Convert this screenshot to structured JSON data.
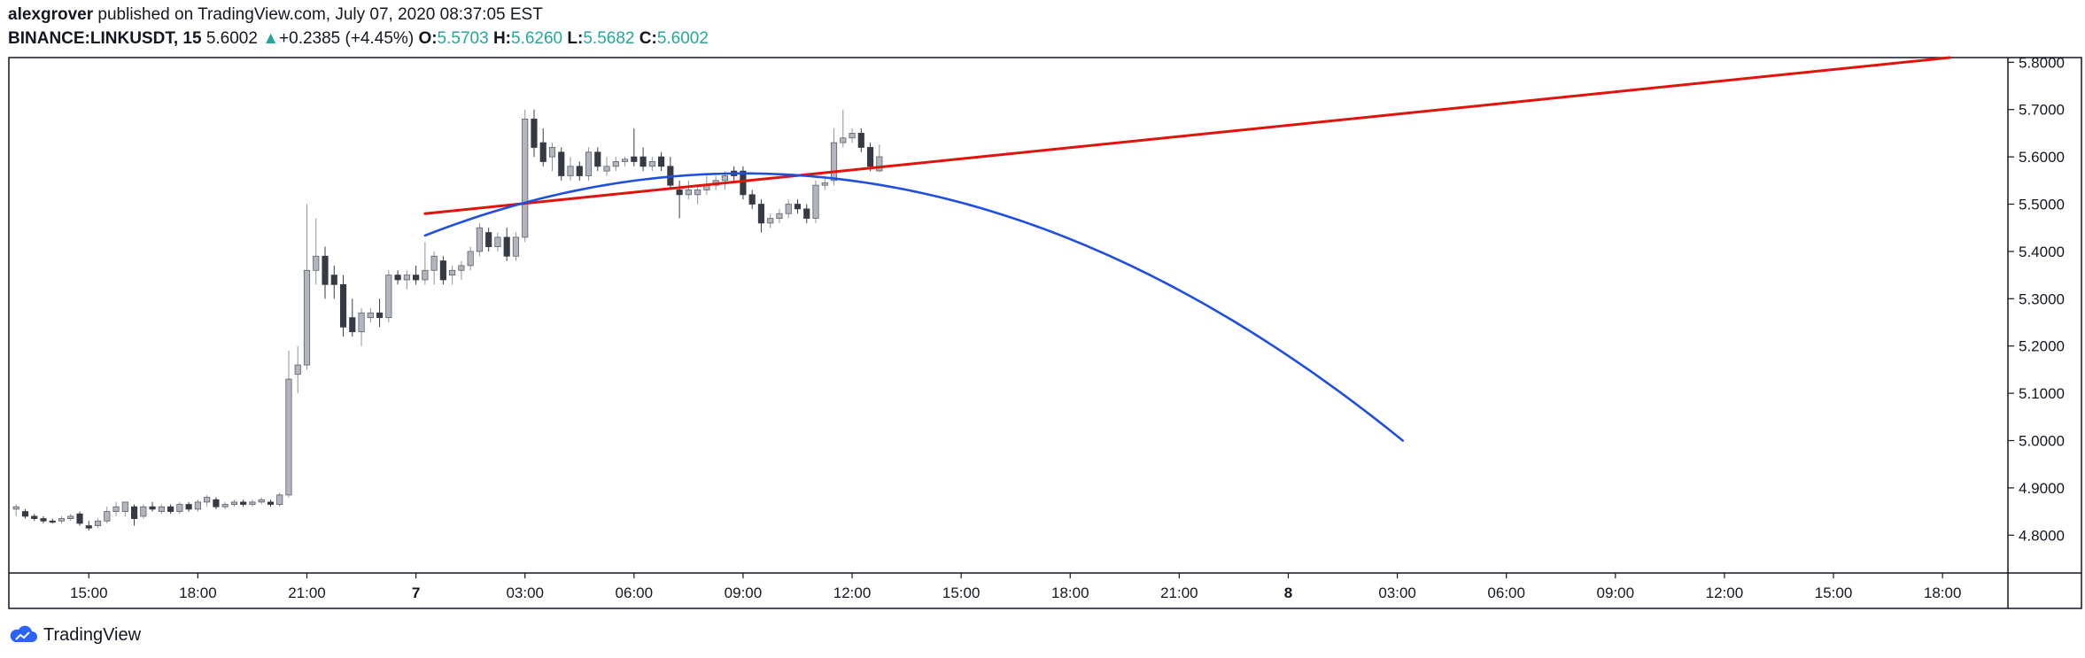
{
  "header": {
    "author": "alexgrover",
    "published_text": "published on TradingView.com, July 07, 2020 08:37:05 EST",
    "symbol": "BINANCE:LINKUSDT, 15",
    "price": "5.6002",
    "arrow": "▲",
    "change": "+0.2385 (+4.45%)",
    "o_label": "O:",
    "o_value": "5.5703",
    "h_label": "H:",
    "h_value": "5.6260",
    "l_label": "L:",
    "l_value": "5.5682",
    "c_label": "C:",
    "c_value": "5.6002"
  },
  "footer": {
    "brand": "TradingView",
    "logo_icon": "tradingview-cloud-icon"
  },
  "colors": {
    "up": "#26a69a",
    "bull_candle": "#b2b5be",
    "bear_candle": "#363a45",
    "red_line": "#e0140c",
    "blue_curve": "#1f4fe0",
    "axis": "#131722"
  },
  "chart_data": {
    "type": "candlestick",
    "symbol": "BINANCE:LINKUSDT",
    "interval": "15",
    "y_axis": {
      "side": "right",
      "ticks": [
        "5.8000",
        "5.7000",
        "5.6000",
        "5.5000",
        "5.4000",
        "5.3000",
        "5.2000",
        "5.1000",
        "5.0000",
        "4.9000",
        "4.8000"
      ],
      "range": [
        4.72,
        5.81
      ]
    },
    "x_axis": {
      "ticks": [
        {
          "label": "15:00",
          "t": 15,
          "bold": false
        },
        {
          "label": "18:00",
          "t": 18,
          "bold": false
        },
        {
          "label": "21:00",
          "t": 21,
          "bold": false
        },
        {
          "label": "7",
          "t": 24,
          "bold": true
        },
        {
          "label": "03:00",
          "t": 27,
          "bold": false
        },
        {
          "label": "06:00",
          "t": 30,
          "bold": false
        },
        {
          "label": "09:00",
          "t": 33,
          "bold": false
        },
        {
          "label": "12:00",
          "t": 36,
          "bold": false
        },
        {
          "label": "15:00",
          "t": 39,
          "bold": false
        },
        {
          "label": "18:00",
          "t": 42,
          "bold": false
        },
        {
          "label": "21:00",
          "t": 45,
          "bold": false
        },
        {
          "label": "8",
          "t": 48,
          "bold": true
        },
        {
          "label": "03:00",
          "t": 51,
          "bold": false
        },
        {
          "label": "06:00",
          "t": 54,
          "bold": false
        },
        {
          "label": "09:00",
          "t": 57,
          "bold": false
        },
        {
          "label": "12:00",
          "t": 60,
          "bold": false
        },
        {
          "label": "15:00",
          "t": 63,
          "bold": false
        },
        {
          "label": "18:00",
          "t": 66,
          "bold": false
        }
      ],
      "range": [
        12.8,
        67.8
      ]
    },
    "candles": [
      {
        "t": 12.75,
        "o": 4.86,
        "h": 4.865,
        "l": 4.85,
        "c": 4.855
      },
      {
        "t": 13.0,
        "o": 4.855,
        "h": 4.865,
        "l": 4.84,
        "c": 4.86
      },
      {
        "t": 13.25,
        "o": 4.85,
        "h": 4.855,
        "l": 4.835,
        "c": 4.84
      },
      {
        "t": 13.5,
        "o": 4.84,
        "h": 4.845,
        "l": 4.83,
        "c": 4.835
      },
      {
        "t": 13.75,
        "o": 4.835,
        "h": 4.84,
        "l": 4.825,
        "c": 4.83
      },
      {
        "t": 14.0,
        "o": 4.83,
        "h": 4.835,
        "l": 4.825,
        "c": 4.828
      },
      {
        "t": 14.25,
        "o": 4.83,
        "h": 4.84,
        "l": 4.825,
        "c": 4.835
      },
      {
        "t": 14.5,
        "o": 4.835,
        "h": 4.845,
        "l": 4.83,
        "c": 4.84
      },
      {
        "t": 14.75,
        "o": 4.845,
        "h": 4.85,
        "l": 4.82,
        "c": 4.825
      },
      {
        "t": 15.0,
        "o": 4.82,
        "h": 4.83,
        "l": 4.81,
        "c": 4.815
      },
      {
        "t": 15.25,
        "o": 4.82,
        "h": 4.835,
        "l": 4.815,
        "c": 4.83
      },
      {
        "t": 15.5,
        "o": 4.83,
        "h": 4.86,
        "l": 4.825,
        "c": 4.85
      },
      {
        "t": 15.75,
        "o": 4.85,
        "h": 4.87,
        "l": 4.84,
        "c": 4.86
      },
      {
        "t": 16.0,
        "o": 4.85,
        "h": 4.87,
        "l": 4.84,
        "c": 4.87
      },
      {
        "t": 16.25,
        "o": 4.86,
        "h": 4.865,
        "l": 4.82,
        "c": 4.835
      },
      {
        "t": 16.5,
        "o": 4.84,
        "h": 4.865,
        "l": 4.835,
        "c": 4.86
      },
      {
        "t": 16.75,
        "o": 4.86,
        "h": 4.87,
        "l": 4.85,
        "c": 4.855
      },
      {
        "t": 17.0,
        "o": 4.85,
        "h": 4.865,
        "l": 4.845,
        "c": 4.86
      },
      {
        "t": 17.25,
        "o": 4.86,
        "h": 4.865,
        "l": 4.845,
        "c": 4.85
      },
      {
        "t": 17.5,
        "o": 4.85,
        "h": 4.87,
        "l": 4.845,
        "c": 4.865
      },
      {
        "t": 17.75,
        "o": 4.865,
        "h": 4.87,
        "l": 4.85,
        "c": 4.855
      },
      {
        "t": 18.0,
        "o": 4.855,
        "h": 4.875,
        "l": 4.85,
        "c": 4.87
      },
      {
        "t": 18.25,
        "o": 4.87,
        "h": 4.885,
        "l": 4.86,
        "c": 4.88
      },
      {
        "t": 18.5,
        "o": 4.875,
        "h": 4.88,
        "l": 4.855,
        "c": 4.86
      },
      {
        "t": 18.75,
        "o": 4.86,
        "h": 4.87,
        "l": 4.855,
        "c": 4.865
      },
      {
        "t": 19.0,
        "o": 4.865,
        "h": 4.875,
        "l": 4.86,
        "c": 4.87
      },
      {
        "t": 19.25,
        "o": 4.87,
        "h": 4.875,
        "l": 4.86,
        "c": 4.865
      },
      {
        "t": 19.5,
        "o": 4.865,
        "h": 4.875,
        "l": 4.86,
        "c": 4.87
      },
      {
        "t": 19.75,
        "o": 4.87,
        "h": 4.88,
        "l": 4.865,
        "c": 4.875
      },
      {
        "t": 20.0,
        "o": 4.87,
        "h": 4.875,
        "l": 4.86,
        "c": 4.865
      },
      {
        "t": 20.25,
        "o": 4.865,
        "h": 4.89,
        "l": 4.86,
        "c": 4.885
      },
      {
        "t": 20.5,
        "o": 4.885,
        "h": 5.19,
        "l": 4.88,
        "c": 5.13
      },
      {
        "t": 20.75,
        "o": 5.14,
        "h": 5.2,
        "l": 5.1,
        "c": 5.16
      },
      {
        "t": 21.0,
        "o": 5.16,
        "h": 5.5,
        "l": 5.15,
        "c": 5.36
      },
      {
        "t": 21.25,
        "o": 5.36,
        "h": 5.47,
        "l": 5.33,
        "c": 5.39
      },
      {
        "t": 21.5,
        "o": 5.39,
        "h": 5.41,
        "l": 5.3,
        "c": 5.33
      },
      {
        "t": 21.75,
        "o": 5.35,
        "h": 5.37,
        "l": 5.3,
        "c": 5.33
      },
      {
        "t": 22.0,
        "o": 5.33,
        "h": 5.35,
        "l": 5.22,
        "c": 5.24
      },
      {
        "t": 22.25,
        "o": 5.26,
        "h": 5.3,
        "l": 5.22,
        "c": 5.23
      },
      {
        "t": 22.5,
        "o": 5.23,
        "h": 5.28,
        "l": 5.2,
        "c": 5.27
      },
      {
        "t": 22.75,
        "o": 5.26,
        "h": 5.28,
        "l": 5.25,
        "c": 5.27
      },
      {
        "t": 23.0,
        "o": 5.27,
        "h": 5.3,
        "l": 5.24,
        "c": 5.26
      },
      {
        "t": 23.25,
        "o": 5.26,
        "h": 5.36,
        "l": 5.25,
        "c": 5.35
      },
      {
        "t": 23.5,
        "o": 5.35,
        "h": 5.36,
        "l": 5.33,
        "c": 5.34
      },
      {
        "t": 23.75,
        "o": 5.34,
        "h": 5.36,
        "l": 5.32,
        "c": 5.35
      },
      {
        "t": 24.0,
        "o": 5.35,
        "h": 5.37,
        "l": 5.33,
        "c": 5.34
      },
      {
        "t": 24.25,
        "o": 5.34,
        "h": 5.42,
        "l": 5.33,
        "c": 5.36
      },
      {
        "t": 24.5,
        "o": 5.36,
        "h": 5.4,
        "l": 5.33,
        "c": 5.39
      },
      {
        "t": 24.75,
        "o": 5.38,
        "h": 5.39,
        "l": 5.33,
        "c": 5.34
      },
      {
        "t": 25.0,
        "o": 5.35,
        "h": 5.37,
        "l": 5.33,
        "c": 5.36
      },
      {
        "t": 25.25,
        "o": 5.36,
        "h": 5.38,
        "l": 5.34,
        "c": 5.37
      },
      {
        "t": 25.5,
        "o": 5.37,
        "h": 5.41,
        "l": 5.36,
        "c": 5.4
      },
      {
        "t": 25.75,
        "o": 5.4,
        "h": 5.46,
        "l": 5.39,
        "c": 5.45
      },
      {
        "t": 26.0,
        "o": 5.44,
        "h": 5.45,
        "l": 5.4,
        "c": 5.41
      },
      {
        "t": 26.25,
        "o": 5.41,
        "h": 5.44,
        "l": 5.4,
        "c": 5.43
      },
      {
        "t": 26.5,
        "o": 5.43,
        "h": 5.45,
        "l": 5.38,
        "c": 5.39
      },
      {
        "t": 26.75,
        "o": 5.39,
        "h": 5.44,
        "l": 5.38,
        "c": 5.43
      },
      {
        "t": 27.0,
        "o": 5.43,
        "h": 5.7,
        "l": 5.42,
        "c": 5.68
      },
      {
        "t": 27.25,
        "o": 5.68,
        "h": 5.7,
        "l": 5.6,
        "c": 5.62
      },
      {
        "t": 27.5,
        "o": 5.63,
        "h": 5.66,
        "l": 5.58,
        "c": 5.59
      },
      {
        "t": 27.75,
        "o": 5.6,
        "h": 5.63,
        "l": 5.57,
        "c": 5.62
      },
      {
        "t": 28.0,
        "o": 5.61,
        "h": 5.62,
        "l": 5.55,
        "c": 5.56
      },
      {
        "t": 28.25,
        "o": 5.56,
        "h": 5.6,
        "l": 5.55,
        "c": 5.58
      },
      {
        "t": 28.5,
        "o": 5.58,
        "h": 5.59,
        "l": 5.55,
        "c": 5.56
      },
      {
        "t": 28.75,
        "o": 5.56,
        "h": 5.62,
        "l": 5.55,
        "c": 5.61
      },
      {
        "t": 29.0,
        "o": 5.61,
        "h": 5.62,
        "l": 5.57,
        "c": 5.58
      },
      {
        "t": 29.25,
        "o": 5.57,
        "h": 5.6,
        "l": 5.56,
        "c": 5.58
      },
      {
        "t": 29.5,
        "o": 5.58,
        "h": 5.6,
        "l": 5.57,
        "c": 5.59
      },
      {
        "t": 29.75,
        "o": 5.59,
        "h": 5.6,
        "l": 5.58,
        "c": 5.595
      },
      {
        "t": 30.0,
        "o": 5.6,
        "h": 5.66,
        "l": 5.58,
        "c": 5.59
      },
      {
        "t": 30.25,
        "o": 5.6,
        "h": 5.62,
        "l": 5.57,
        "c": 5.58
      },
      {
        "t": 30.5,
        "o": 5.58,
        "h": 5.6,
        "l": 5.57,
        "c": 5.59
      },
      {
        "t": 30.75,
        "o": 5.6,
        "h": 5.61,
        "l": 5.57,
        "c": 5.58
      },
      {
        "t": 31.0,
        "o": 5.58,
        "h": 5.6,
        "l": 5.53,
        "c": 5.54
      },
      {
        "t": 31.25,
        "o": 5.53,
        "h": 5.55,
        "l": 5.47,
        "c": 5.52
      },
      {
        "t": 31.5,
        "o": 5.52,
        "h": 5.55,
        "l": 5.51,
        "c": 5.53
      },
      {
        "t": 31.75,
        "o": 5.52,
        "h": 5.54,
        "l": 5.5,
        "c": 5.53
      },
      {
        "t": 32.0,
        "o": 5.53,
        "h": 5.56,
        "l": 5.52,
        "c": 5.54
      },
      {
        "t": 32.25,
        "o": 5.54,
        "h": 5.56,
        "l": 5.53,
        "c": 5.55
      },
      {
        "t": 32.5,
        "o": 5.55,
        "h": 5.57,
        "l": 5.53,
        "c": 5.56
      },
      {
        "t": 32.75,
        "o": 5.57,
        "h": 5.58,
        "l": 5.55,
        "c": 5.56
      },
      {
        "t": 33.0,
        "o": 5.57,
        "h": 5.58,
        "l": 5.51,
        "c": 5.52
      },
      {
        "t": 33.25,
        "o": 5.52,
        "h": 5.53,
        "l": 5.49,
        "c": 5.5
      },
      {
        "t": 33.5,
        "o": 5.5,
        "h": 5.51,
        "l": 5.44,
        "c": 5.46
      },
      {
        "t": 33.75,
        "o": 5.46,
        "h": 5.48,
        "l": 5.45,
        "c": 5.47
      },
      {
        "t": 34.0,
        "o": 5.47,
        "h": 5.49,
        "l": 5.46,
        "c": 5.48
      },
      {
        "t": 34.25,
        "o": 5.48,
        "h": 5.51,
        "l": 5.47,
        "c": 5.5
      },
      {
        "t": 34.5,
        "o": 5.5,
        "h": 5.51,
        "l": 5.48,
        "c": 5.49
      },
      {
        "t": 34.75,
        "o": 5.49,
        "h": 5.5,
        "l": 5.46,
        "c": 5.47
      },
      {
        "t": 35.0,
        "o": 5.47,
        "h": 5.55,
        "l": 5.46,
        "c": 5.54
      },
      {
        "t": 35.25,
        "o": 5.54,
        "h": 5.56,
        "l": 5.53,
        "c": 5.545
      },
      {
        "t": 35.5,
        "o": 5.55,
        "h": 5.66,
        "l": 5.54,
        "c": 5.63
      },
      {
        "t": 35.75,
        "o": 5.63,
        "h": 5.7,
        "l": 5.62,
        "c": 5.64
      },
      {
        "t": 36.0,
        "o": 5.64,
        "h": 5.66,
        "l": 5.63,
        "c": 5.65
      },
      {
        "t": 36.25,
        "o": 5.65,
        "h": 5.66,
        "l": 5.61,
        "c": 5.62
      },
      {
        "t": 36.5,
        "o": 5.62,
        "h": 5.63,
        "l": 5.57,
        "c": 5.58
      },
      {
        "t": 36.75,
        "o": 5.5703,
        "h": 5.626,
        "l": 5.5682,
        "c": 5.6002
      }
    ],
    "lines": [
      {
        "name": "red-trendline",
        "color": "#e0140c",
        "from": {
          "t": 24.25,
          "p": 5.48
        },
        "to": {
          "t": 66.2,
          "p": 5.81
        }
      }
    ],
    "curves": [
      {
        "name": "blue-parabola",
        "color": "#1f4fe0",
        "t0": 24.25,
        "t1": 51.15,
        "vertex_t": 33.0,
        "vertex_p": 5.565,
        "end_p": 5.0
      }
    ]
  }
}
